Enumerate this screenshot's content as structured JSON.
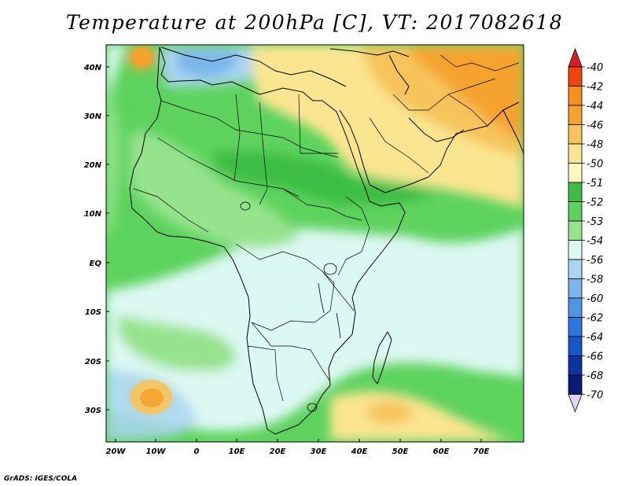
{
  "title": "Temperature at 200hPa [C], VT: 2017082618",
  "credit": "GrADS: IGES/COLA",
  "x_ticks": [
    "20W",
    "10W",
    "0",
    "10E",
    "20E",
    "30E",
    "40E",
    "50E",
    "60E",
    "70E"
  ],
  "y_ticks": [
    "40N",
    "30N",
    "20N",
    "10N",
    "EQ",
    "10S",
    "20S",
    "30S"
  ],
  "colorbar": {
    "labels": [
      "-40",
      "-42",
      "-44",
      "-46",
      "-48",
      "-50",
      "-51",
      "-52",
      "-53",
      "-54",
      "-56",
      "-58",
      "-60",
      "-62",
      "-64",
      "-66",
      "-68",
      "-70"
    ],
    "colors": [
      "#d81e1e",
      "#f0460a",
      "#f58f1e",
      "#f5a22e",
      "#f6c45a",
      "#fbe590",
      "#fdf7c4",
      "#3cbd44",
      "#5dd35e",
      "#96e38d",
      "#dcf8f2",
      "#aad6f2",
      "#7ab6ec",
      "#4e96e4",
      "#2a78de",
      "#1657c8",
      "#0a34a0",
      "#0a1c78",
      "#e1d6f6"
    ]
  },
  "palette": {
    "land_green": "#5dd35e",
    "light_green": "#96e38d",
    "dark_green": "#3cbd44",
    "pale_cyan": "#dcf8f2",
    "light_blue": "#aad6f2",
    "mid_blue": "#7ab6ec",
    "yellow": "#fbe590",
    "light_orange": "#f6c45a",
    "orange": "#f5a22e"
  }
}
